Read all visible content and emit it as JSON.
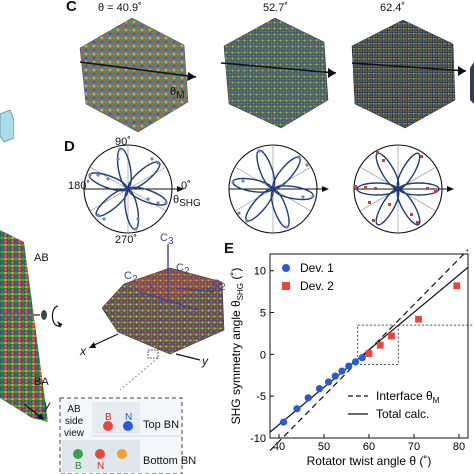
{
  "panel_c": {
    "letter": "C",
    "angles": [
      "θ = 40.9˚",
      "52.7˚",
      "62.4˚"
    ],
    "axis_label": "θ",
    "axis_sub": "M"
  },
  "panel_d": {
    "letter": "D",
    "label_90": "90˚",
    "label_180": "180˚",
    "label_0": "0˚",
    "label_270": "270˚",
    "axis_label": "θ",
    "axis_sub": "SHG"
  },
  "left_panel": {
    "label_ab": "AB",
    "label_ba": "BA",
    "axis_y": "y",
    "c3": "C",
    "c3_sub": "3",
    "c2": "C",
    "c2_sub": "2",
    "axis_x": "x",
    "axis_y2": "y",
    "inset_side_view": [
      "AB",
      "side",
      "view"
    ],
    "inset_top_bn": "Top BN",
    "inset_bottom_bn": "Bottom BN",
    "atom_b": "B",
    "atom_n": "N"
  },
  "chart_data": {
    "type": "scatter",
    "panel_letter": "E",
    "xlabel": "Rotator twist angle θ (˚)",
    "ylabel_main": "SHG symmetry angle θ",
    "ylabel_sub": "SHG",
    "ylabel_unit": " (˚)",
    "xlim": [
      38,
      82
    ],
    "ylim": [
      -10,
      12
    ],
    "xticks": [
      40,
      50,
      60,
      70,
      80
    ],
    "yticks": [
      -10,
      -5,
      0,
      5,
      10
    ],
    "series": [
      {
        "name": "Dev. 1",
        "color": "#2a5bd7",
        "marker": "circle",
        "x": [
          41,
          44,
          46.5,
          49,
          51,
          52.5,
          54,
          55.5,
          57,
          58.5
        ],
        "y": [
          -8.1,
          -6.5,
          -5.2,
          -4.1,
          -3.3,
          -2.6,
          -2.0,
          -1.4,
          -0.9,
          -0.4
        ]
      },
      {
        "name": "Dev. 2",
        "color": "#e8453c",
        "marker": "square",
        "x": [
          60,
          62.5,
          65,
          71,
          79.5
        ],
        "y": [
          0.1,
          1.1,
          2.2,
          4.2,
          8.2
        ]
      }
    ],
    "lines": [
      {
        "name": "Interface θ",
        "name_sub": "M",
        "style": "dashed",
        "x": [
          38,
          82
        ],
        "y": [
          -11.5,
          12.5
        ]
      },
      {
        "name": "Total calc.",
        "style": "solid",
        "x": [
          38,
          82
        ],
        "y": [
          -9.3,
          10.4
        ]
      }
    ],
    "legend_position": "top-left"
  },
  "colors": {
    "boron": "#e8453c",
    "nitrogen": "#2a5bd7",
    "boron_bottom": "#3aa14a",
    "nitrogen_bottom": "#f0a030",
    "polar_line": "#1e3a7a",
    "polar_points_red": "#c4423a"
  }
}
